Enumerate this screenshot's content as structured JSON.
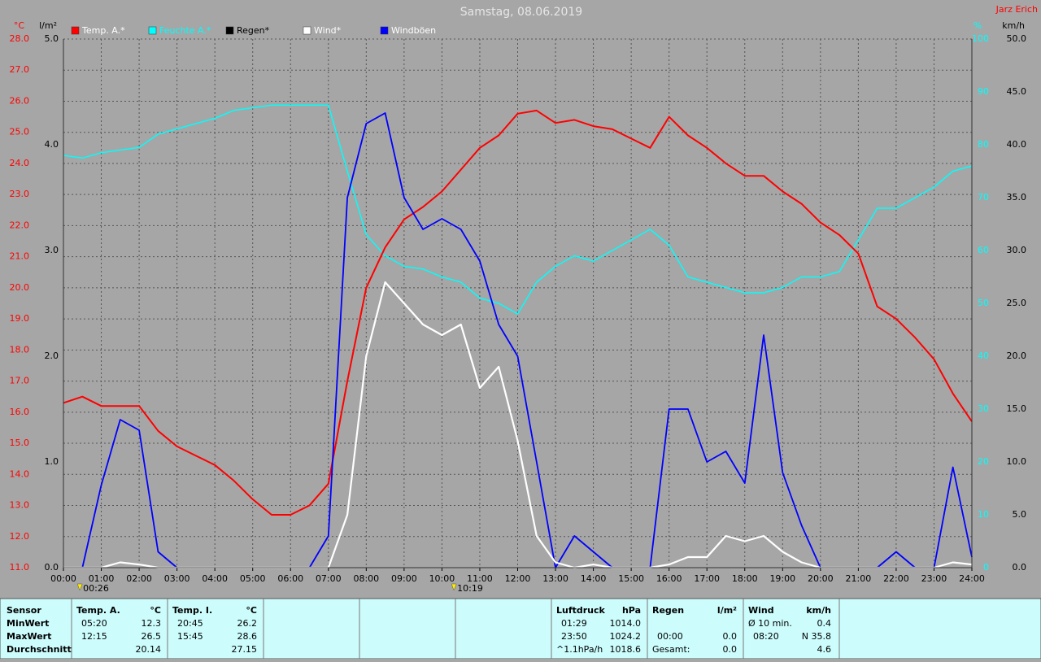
{
  "chart_data": {
    "type": "line",
    "title": "Samstag, 08.06.2019",
    "author": "Jarz Erich",
    "x": [
      0,
      0.5,
      1,
      1.5,
      2,
      2.5,
      3,
      3.5,
      4,
      4.5,
      5,
      5.5,
      6,
      6.5,
      7,
      7.5,
      8,
      8.5,
      9,
      9.5,
      10,
      10.5,
      11,
      11.5,
      12,
      12.5,
      13,
      13.5,
      14,
      14.5,
      15,
      15.5,
      16,
      16.5,
      17,
      17.5,
      18,
      18.5,
      19,
      19.5,
      20,
      20.5,
      21,
      21.5,
      22,
      22.5,
      23,
      23.5,
      24
    ],
    "xlim": [
      0,
      24
    ],
    "xticks": [
      {
        "value": 0,
        "label": "00:00"
      },
      {
        "value": 1,
        "label": "01:00"
      },
      {
        "value": 2,
        "label": "02:00"
      },
      {
        "value": 3,
        "label": "03:00"
      },
      {
        "value": 4,
        "label": "04:00"
      },
      {
        "value": 5,
        "label": "05:00"
      },
      {
        "value": 6,
        "label": "06:00"
      },
      {
        "value": 7,
        "label": "07:00"
      },
      {
        "value": 8,
        "label": "08:00"
      },
      {
        "value": 9,
        "label": "09:00"
      },
      {
        "value": 10,
        "label": "10:00"
      },
      {
        "value": 11,
        "label": "11:00"
      },
      {
        "value": 12,
        "label": "12:00"
      },
      {
        "value": 13,
        "label": "13:00"
      },
      {
        "value": 14,
        "label": "14:00"
      },
      {
        "value": 15,
        "label": "15:00"
      },
      {
        "value": 16,
        "label": "16:00"
      },
      {
        "value": 17,
        "label": "17:00"
      },
      {
        "value": 18,
        "label": "18:00"
      },
      {
        "value": 19,
        "label": "19:00"
      },
      {
        "value": 20,
        "label": "20:00"
      },
      {
        "value": 21,
        "label": "21:00"
      },
      {
        "value": 22,
        "label": "22:00"
      },
      {
        "value": 23,
        "label": "23:00"
      },
      {
        "value": 24,
        "label": "24:00"
      }
    ],
    "y_label": "°C",
    "ylim": [
      11,
      28
    ],
    "yticks": [
      {
        "value": 11,
        "label": "11.0"
      },
      {
        "value": 12,
        "label": "12.0"
      },
      {
        "value": 13,
        "label": "13.0"
      },
      {
        "value": 14,
        "label": "14.0"
      },
      {
        "value": 15,
        "label": "15.0"
      },
      {
        "value": 16,
        "label": "16.0"
      },
      {
        "value": 17,
        "label": "17.0"
      },
      {
        "value": 18,
        "label": "18.0"
      },
      {
        "value": 19,
        "label": "19.0"
      },
      {
        "value": 20,
        "label": "20.0"
      },
      {
        "value": 21,
        "label": "21.0"
      },
      {
        "value": 22,
        "label": "22.0"
      },
      {
        "value": 23,
        "label": "23.0"
      },
      {
        "value": 24,
        "label": "24.0"
      },
      {
        "value": 25,
        "label": "25.0"
      },
      {
        "value": 26,
        "label": "26.0"
      },
      {
        "value": 27,
        "label": "27.0"
      },
      {
        "value": 28,
        "label": "28.0"
      }
    ],
    "y2_label": "%",
    "y2lim": [
      0,
      100
    ],
    "y2ticks": [
      0,
      10,
      20,
      30,
      40,
      50,
      60,
      70,
      80,
      90,
      100
    ],
    "y3_label": "km/h",
    "y3lim": [
      0,
      50
    ],
    "y3ticks": [
      {
        "value": 0,
        "label": "0.0"
      },
      {
        "value": 5,
        "label": "5.0"
      },
      {
        "value": 10,
        "label": "10.0"
      },
      {
        "value": 15,
        "label": "15.0"
      },
      {
        "value": 20,
        "label": "20.0"
      },
      {
        "value": 25,
        "label": "25.0"
      },
      {
        "value": 30,
        "label": "30.0"
      },
      {
        "value": 35,
        "label": "35.0"
      },
      {
        "value": 40,
        "label": "40.0"
      },
      {
        "value": 45,
        "label": "45.0"
      },
      {
        "value": 50,
        "label": "50.0"
      }
    ],
    "y4_label": "l/m²",
    "y4lim": [
      0,
      5
    ],
    "y4ticks": [
      {
        "value": 0,
        "label": "0.0"
      },
      {
        "value": 1,
        "label": "1.0"
      },
      {
        "value": 2,
        "label": "2.0"
      },
      {
        "value": 3,
        "label": "3.0"
      },
      {
        "value": 4,
        "label": "4.0"
      },
      {
        "value": 5,
        "label": "5.0"
      }
    ],
    "axis_colors": {
      "y": "#ff0000",
      "y2": "#00ffff",
      "y3": "#000000",
      "y4": "#000000"
    },
    "grid": true,
    "series": [
      {
        "name": "Temp. A.*",
        "color": "#ff0000",
        "axis": "y",
        "values": [
          16.3,
          16.5,
          16.2,
          16.2,
          16.2,
          15.4,
          14.9,
          14.6,
          14.3,
          13.8,
          13.2,
          12.7,
          12.7,
          13.0,
          13.7,
          17.0,
          20.0,
          21.3,
          22.2,
          22.6,
          23.1,
          23.8,
          24.5,
          24.9,
          25.6,
          25.7,
          25.3,
          25.4,
          25.2,
          25.1,
          24.8,
          24.5,
          25.5,
          24.9,
          24.5,
          24.0,
          23.6,
          23.6,
          23.1,
          22.7,
          22.1,
          21.7,
          21.1,
          19.4,
          19.0,
          18.4,
          17.7,
          16.6,
          15.7
        ]
      },
      {
        "name": "Feuchte A.*",
        "color": "#00ffff",
        "axis": "y2",
        "values": [
          78,
          77.5,
          78.5,
          79,
          79.5,
          82,
          83,
          84,
          85,
          86.5,
          87,
          87.5,
          87.5,
          87.5,
          87.5,
          75,
          63,
          59,
          57,
          56.5,
          55,
          54,
          51,
          50,
          48,
          54,
          57,
          59,
          58,
          60,
          62,
          64,
          61,
          55,
          54,
          53,
          52,
          52,
          53,
          55,
          55,
          56,
          62,
          68,
          68,
          70,
          72,
          75,
          76
        ]
      },
      {
        "name": "Regen*",
        "color": "#000000",
        "axis": "y4",
        "values": [
          0,
          0,
          0,
          0,
          0,
          0,
          0,
          0,
          0,
          0,
          0,
          0,
          0,
          0,
          0,
          0,
          0,
          0,
          0,
          0,
          0,
          0,
          0,
          0,
          0,
          0,
          0,
          0,
          0,
          0,
          0,
          0,
          0,
          0,
          0,
          0,
          0,
          0,
          0,
          0,
          0,
          0,
          0,
          0,
          0,
          0,
          0,
          0,
          0
        ]
      },
      {
        "name": "Wind*",
        "color": "#ffffff",
        "axis": "y3",
        "values": [
          0,
          0,
          0,
          0.5,
          0.3,
          0,
          0,
          0,
          0,
          0,
          0,
          0,
          0,
          0,
          0,
          5,
          20,
          27,
          25,
          23,
          22,
          23,
          17,
          19,
          12,
          3,
          0.5,
          0,
          0.3,
          0,
          0,
          0,
          0.3,
          1,
          1,
          3,
          2.5,
          3,
          1.5,
          0.5,
          0,
          0,
          0,
          0,
          0,
          0,
          0,
          0.5,
          0.3
        ]
      },
      {
        "name": "Windböen",
        "color": "#0000ff",
        "axis": "y3",
        "values": [
          0,
          0,
          7.8,
          14,
          13,
          1.5,
          0,
          0,
          0,
          0,
          0,
          0,
          0,
          0,
          3,
          35,
          42,
          43,
          35,
          32,
          33,
          32,
          29,
          23,
          20,
          10,
          0,
          3,
          1.5,
          0,
          0,
          0,
          15,
          15,
          10,
          11,
          8,
          22,
          9,
          4,
          0,
          0,
          0,
          0,
          1.5,
          0,
          0,
          9.5,
          1
        ]
      }
    ],
    "sun_markers": [
      {
        "x": 0.433,
        "label": "00:26"
      },
      {
        "x": 10.317,
        "label": "10:19"
      }
    ]
  },
  "table": {
    "corner": "Sensor",
    "row_labels": [
      "MinWert",
      "MaxWert",
      "Durchschnitt"
    ],
    "columns": [
      {
        "header": "Temp. A.",
        "unit": "°C",
        "rows": [
          [
            "05:20",
            "12.3"
          ],
          [
            "12:15",
            "26.5"
          ],
          [
            null,
            "20.14"
          ]
        ]
      },
      {
        "header": "Temp. I.",
        "unit": "°C",
        "rows": [
          [
            "20:45",
            "26.2"
          ],
          [
            "15:45",
            "28.6"
          ],
          [
            null,
            "27.15"
          ]
        ]
      },
      {
        "header": "Luftdruck",
        "unit": "hPa",
        "rows": [
          [
            "01:29",
            "1014.0"
          ],
          [
            "23:50",
            "1024.2"
          ],
          [
            "^1.1hPa/h",
            "1018.6"
          ]
        ]
      },
      {
        "header": "Regen",
        "unit": "l/m²",
        "rows": [
          [
            null,
            null
          ],
          [
            "00:00",
            "0.0"
          ],
          [
            "Gesamt:",
            "0.0"
          ]
        ]
      },
      {
        "header": "Wind",
        "unit": "km/h",
        "rows": [
          [
            "Ø 10 min.",
            "0.4"
          ],
          [
            "08:20",
            "N 35.8"
          ],
          [
            null,
            "4.6"
          ]
        ]
      }
    ]
  }
}
